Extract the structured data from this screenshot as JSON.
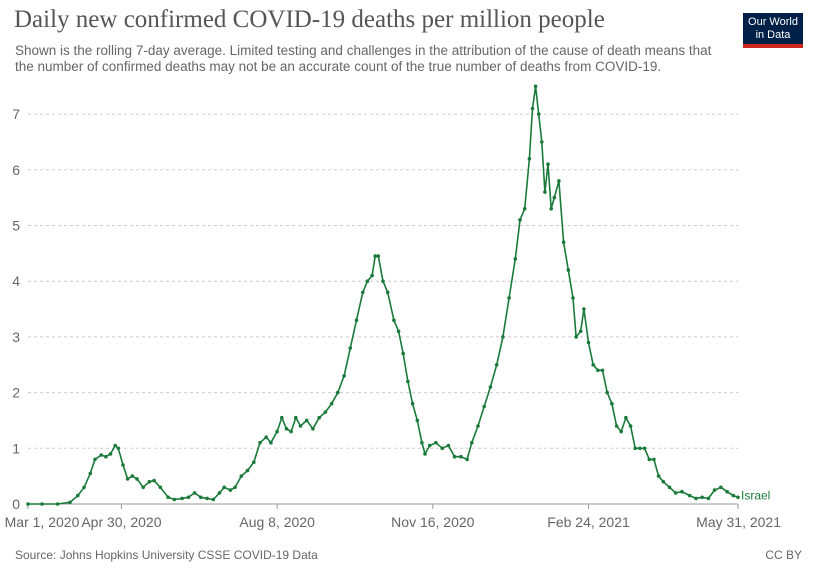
{
  "header": {
    "title": "Daily new confirmed COVID-19 deaths per million people",
    "subtitle": "Shown is the rolling 7-day average. Limited testing and challenges in the attribution of the cause of death means that the number of confirmed deaths may not be an accurate count of the true number of deaths from COVID-19.",
    "logo_line1": "Our World",
    "logo_line2": "in Data"
  },
  "footer": {
    "source": "Source: Johns Hopkins University CSSE COVID-19 Data",
    "license": "CC BY"
  },
  "colors": {
    "series": "#1a7a3a",
    "grid": "#cccccc",
    "logo_bg": "#002147",
    "logo_accent": "#ce261e"
  },
  "chart_data": {
    "type": "line",
    "title": "Daily new confirmed COVID-19 deaths per million people",
    "xlabel": "",
    "ylabel": "",
    "x_range": [
      "2020-03-01",
      "2021-05-31"
    ],
    "ylim": [
      0,
      7.6
    ],
    "y_ticks": [
      "0",
      "1",
      "2",
      "3",
      "4",
      "5",
      "6",
      "7"
    ],
    "x_ticks": [
      "Mar 1, 2020",
      "Apr 30, 2020",
      "Aug 8, 2020",
      "Nov 16, 2020",
      "Feb 24, 2021",
      "May 31, 2021"
    ],
    "grid": true,
    "legend": "end-of-line label",
    "series": [
      {
        "name": "Israel",
        "points": [
          [
            "2020-03-01",
            0
          ],
          [
            "2020-03-10",
            0
          ],
          [
            "2020-03-20",
            0
          ],
          [
            "2020-03-28",
            0.03
          ],
          [
            "2020-04-02",
            0.15
          ],
          [
            "2020-04-06",
            0.3
          ],
          [
            "2020-04-10",
            0.55
          ],
          [
            "2020-04-13",
            0.8
          ],
          [
            "2020-04-17",
            0.88
          ],
          [
            "2020-04-20",
            0.85
          ],
          [
            "2020-04-23",
            0.9
          ],
          [
            "2020-04-26",
            1.05
          ],
          [
            "2020-04-28",
            1.0
          ],
          [
            "2020-05-01",
            0.7
          ],
          [
            "2020-05-04",
            0.45
          ],
          [
            "2020-05-07",
            0.5
          ],
          [
            "2020-05-10",
            0.45
          ],
          [
            "2020-05-14",
            0.3
          ],
          [
            "2020-05-18",
            0.4
          ],
          [
            "2020-05-21",
            0.42
          ],
          [
            "2020-05-25",
            0.3
          ],
          [
            "2020-05-30",
            0.12
          ],
          [
            "2020-06-03",
            0.08
          ],
          [
            "2020-06-08",
            0.1
          ],
          [
            "2020-06-12",
            0.12
          ],
          [
            "2020-06-16",
            0.2
          ],
          [
            "2020-06-20",
            0.12
          ],
          [
            "2020-06-24",
            0.1
          ],
          [
            "2020-06-28",
            0.08
          ],
          [
            "2020-07-02",
            0.2
          ],
          [
            "2020-07-05",
            0.3
          ],
          [
            "2020-07-09",
            0.25
          ],
          [
            "2020-07-12",
            0.3
          ],
          [
            "2020-07-16",
            0.5
          ],
          [
            "2020-07-20",
            0.6
          ],
          [
            "2020-07-24",
            0.75
          ],
          [
            "2020-07-28",
            1.1
          ],
          [
            "2020-08-01",
            1.2
          ],
          [
            "2020-08-04",
            1.1
          ],
          [
            "2020-08-08",
            1.3
          ],
          [
            "2020-08-11",
            1.55
          ],
          [
            "2020-08-14",
            1.35
          ],
          [
            "2020-08-17",
            1.3
          ],
          [
            "2020-08-20",
            1.55
          ],
          [
            "2020-08-23",
            1.4
          ],
          [
            "2020-08-27",
            1.5
          ],
          [
            "2020-08-31",
            1.35
          ],
          [
            "2020-09-04",
            1.55
          ],
          [
            "2020-09-08",
            1.65
          ],
          [
            "2020-09-12",
            1.8
          ],
          [
            "2020-09-16",
            2.0
          ],
          [
            "2020-09-20",
            2.3
          ],
          [
            "2020-09-24",
            2.8
          ],
          [
            "2020-09-28",
            3.3
          ],
          [
            "2020-10-02",
            3.8
          ],
          [
            "2020-10-05",
            4.0
          ],
          [
            "2020-10-08",
            4.1
          ],
          [
            "2020-10-10",
            4.45
          ],
          [
            "2020-10-12",
            4.45
          ],
          [
            "2020-10-15",
            4.0
          ],
          [
            "2020-10-18",
            3.8
          ],
          [
            "2020-10-22",
            3.3
          ],
          [
            "2020-10-25",
            3.1
          ],
          [
            "2020-10-28",
            2.7
          ],
          [
            "2020-10-31",
            2.2
          ],
          [
            "2020-11-03",
            1.8
          ],
          [
            "2020-11-06",
            1.5
          ],
          [
            "2020-11-09",
            1.1
          ],
          [
            "2020-11-11",
            0.9
          ],
          [
            "2020-11-14",
            1.05
          ],
          [
            "2020-11-18",
            1.1
          ],
          [
            "2020-11-22",
            1.0
          ],
          [
            "2020-11-26",
            1.05
          ],
          [
            "2020-11-30",
            0.85
          ],
          [
            "2020-12-04",
            0.85
          ],
          [
            "2020-12-08",
            0.8
          ],
          [
            "2020-12-11",
            1.1
          ],
          [
            "2020-12-15",
            1.4
          ],
          [
            "2020-12-19",
            1.75
          ],
          [
            "2020-12-23",
            2.1
          ],
          [
            "2020-12-27",
            2.5
          ],
          [
            "2020-12-31",
            3.0
          ],
          [
            "2021-01-04",
            3.7
          ],
          [
            "2021-01-08",
            4.4
          ],
          [
            "2021-01-11",
            5.1
          ],
          [
            "2021-01-14",
            5.3
          ],
          [
            "2021-01-17",
            6.2
          ],
          [
            "2021-01-19",
            7.1
          ],
          [
            "2021-01-21",
            7.5
          ],
          [
            "2021-01-23",
            7.0
          ],
          [
            "2021-01-25",
            6.5
          ],
          [
            "2021-01-27",
            5.6
          ],
          [
            "2021-01-29",
            6.1
          ],
          [
            "2021-01-31",
            5.3
          ],
          [
            "2021-02-02",
            5.5
          ],
          [
            "2021-02-05",
            5.8
          ],
          [
            "2021-02-08",
            4.7
          ],
          [
            "2021-02-11",
            4.2
          ],
          [
            "2021-02-14",
            3.7
          ],
          [
            "2021-02-16",
            3.0
          ],
          [
            "2021-02-19",
            3.1
          ],
          [
            "2021-02-21",
            3.5
          ],
          [
            "2021-02-24",
            2.9
          ],
          [
            "2021-02-27",
            2.5
          ],
          [
            "2021-03-02",
            2.4
          ],
          [
            "2021-03-05",
            2.4
          ],
          [
            "2021-03-08",
            2.0
          ],
          [
            "2021-03-11",
            1.8
          ],
          [
            "2021-03-14",
            1.4
          ],
          [
            "2021-03-17",
            1.3
          ],
          [
            "2021-03-20",
            1.55
          ],
          [
            "2021-03-23",
            1.4
          ],
          [
            "2021-03-26",
            1.0
          ],
          [
            "2021-03-29",
            1.0
          ],
          [
            "2021-04-01",
            1.0
          ],
          [
            "2021-04-04",
            0.8
          ],
          [
            "2021-04-07",
            0.8
          ],
          [
            "2021-04-10",
            0.5
          ],
          [
            "2021-04-13",
            0.4
          ],
          [
            "2021-04-17",
            0.3
          ],
          [
            "2021-04-21",
            0.2
          ],
          [
            "2021-04-25",
            0.22
          ],
          [
            "2021-04-30",
            0.15
          ],
          [
            "2021-05-04",
            0.1
          ],
          [
            "2021-05-08",
            0.12
          ],
          [
            "2021-05-12",
            0.1
          ],
          [
            "2021-05-16",
            0.25
          ],
          [
            "2021-05-20",
            0.3
          ],
          [
            "2021-05-24",
            0.22
          ],
          [
            "2021-05-28",
            0.15
          ],
          [
            "2021-05-31",
            0.12
          ]
        ]
      }
    ]
  }
}
